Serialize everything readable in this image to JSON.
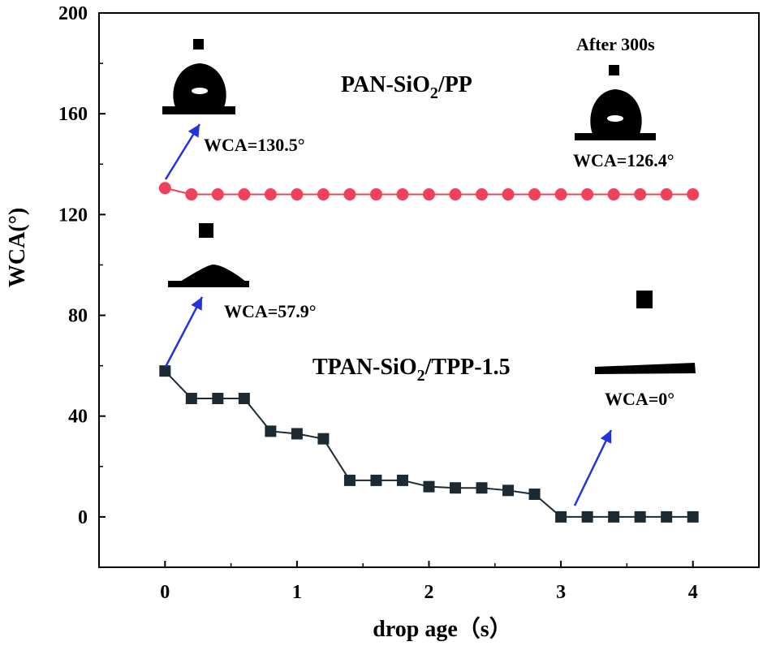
{
  "chart_data": {
    "type": "line",
    "title": "",
    "xlabel": "drop age（s）",
    "ylabel": "WCA(°)",
    "xlim": [
      -0.5,
      4.5
    ],
    "ylim": [
      -20,
      200
    ],
    "xticks": [
      0,
      1,
      2,
      3,
      4
    ],
    "yticks": [
      0,
      40,
      80,
      120,
      160,
      200
    ],
    "grid": false,
    "legend": "none",
    "x": [
      0,
      0.2,
      0.4,
      0.6,
      0.8,
      1.0,
      1.2,
      1.4,
      1.6,
      1.8,
      2.0,
      2.2,
      2.4,
      2.6,
      2.8,
      3.0,
      3.2,
      3.4,
      3.6,
      3.8,
      4.0
    ],
    "series": [
      {
        "label": "PAN-SiO2/PP",
        "color": "#f0415a",
        "marker": "circle",
        "values": [
          130.5,
          128,
          128,
          128,
          128,
          128,
          128,
          128,
          128,
          128,
          128,
          128,
          128,
          128,
          128,
          128,
          128,
          128,
          128,
          128,
          128
        ]
      },
      {
        "label": "TPAN-SiO2/TPP-1.5",
        "color": "#1c2a33",
        "marker": "square",
        "values": [
          57.9,
          47,
          47,
          47,
          34,
          33,
          31,
          14.5,
          14.5,
          14.5,
          12,
          11.5,
          11.5,
          10.5,
          9,
          0,
          0,
          0,
          0,
          0,
          0
        ]
      }
    ],
    "annotations": {
      "pan_label": "PAN-SiO",
      "pan_sub": "2",
      "pan_tail": "/PP",
      "tpan_label": "TPAN-SiO",
      "tpan_sub": "2",
      "tpan_tail": "/TPP-1.5",
      "wca_pan_start": "WCA=130.5°",
      "wca_pan_end": "WCA=126.4°",
      "after_text": "After 300s",
      "wca_tpan_start": "WCA=57.9°",
      "wca_tpan_end": "WCA=0°"
    },
    "colors": {
      "arrow": "#2233dd",
      "droplet": "#000000"
    }
  }
}
